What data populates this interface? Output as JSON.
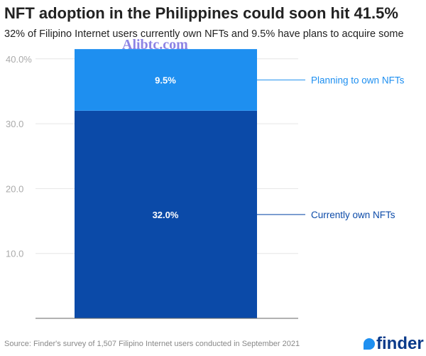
{
  "title": "NFT adoption in the Philippines could soon hit 41.5%",
  "subtitle": "32% of Filipino Internet users currently own NFTs and 9.5% have plans to acquire some",
  "watermark": "Alibtc.com",
  "source": "Source: Finder's survey of 1,507 Filipino Internet users conducted in September 2021",
  "logo": "finder",
  "chart_data": {
    "type": "bar",
    "stacked": true,
    "ylim": [
      0,
      41.5
    ],
    "yticks": [
      "10.0",
      "20.0",
      "30.0",
      "40.0%"
    ],
    "ytick_values": [
      10,
      20,
      30,
      40
    ],
    "grid": true,
    "series": [
      {
        "name": "Currently own NFTs",
        "values": [
          32.0
        ],
        "label": "32.0%",
        "color": "#0b4aa8"
      },
      {
        "name": "Planning to own NFTs",
        "values": [
          9.5
        ],
        "label": "9.5%",
        "color": "#1e8ff0"
      }
    ]
  }
}
